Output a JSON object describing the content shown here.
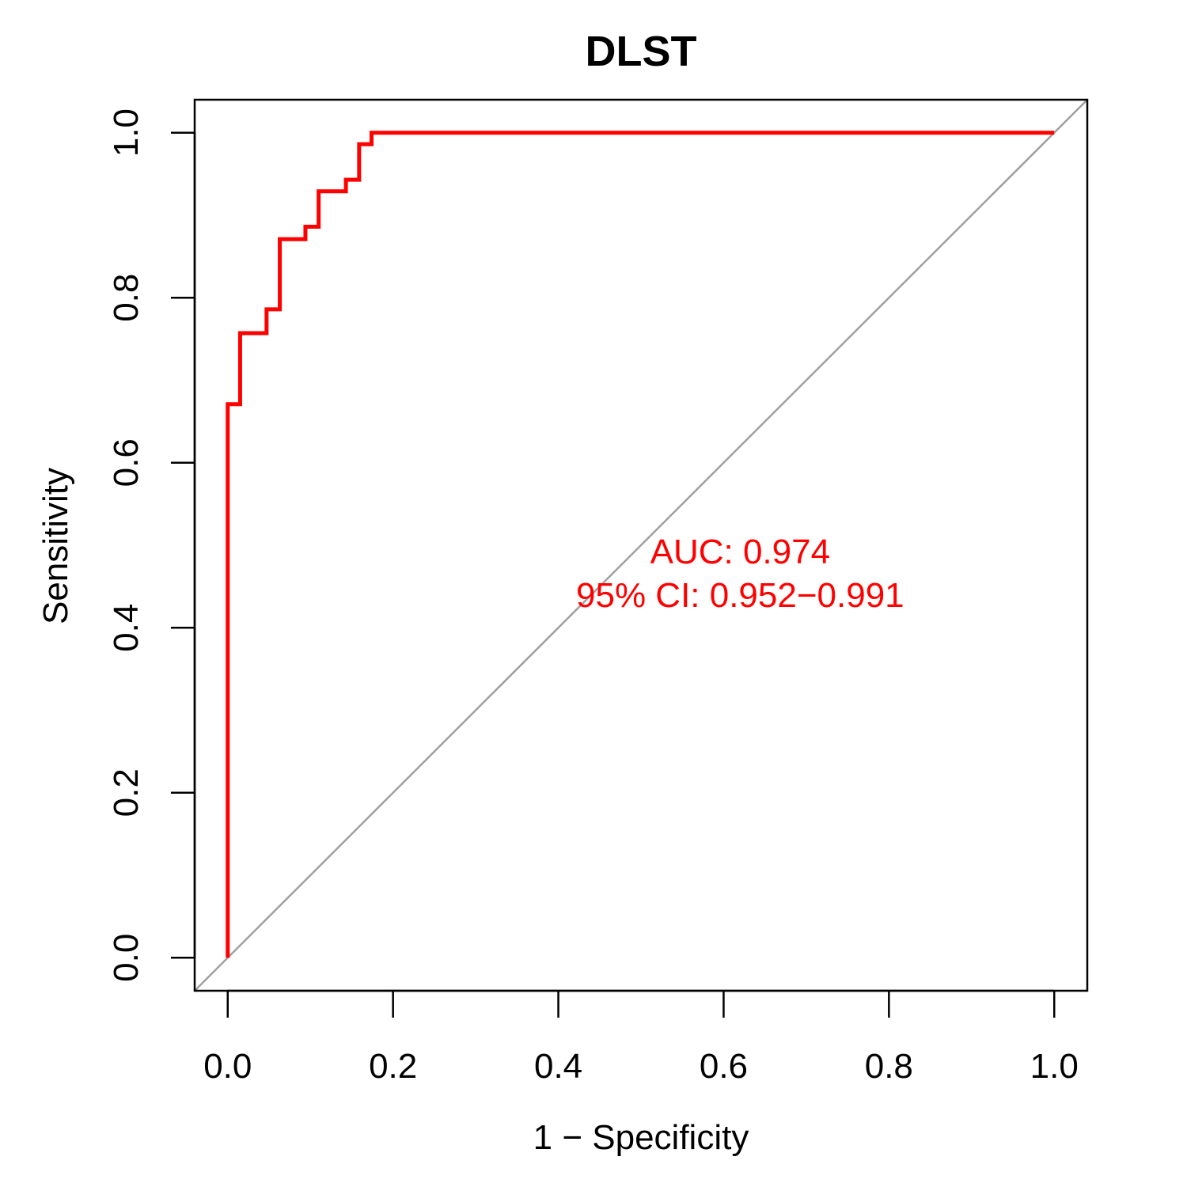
{
  "chart_data": {
    "type": "line",
    "title": "DLST",
    "xlabel": "1 − Specificity",
    "ylabel": "Sensitivity",
    "xlim": [
      -0.04,
      1.04
    ],
    "ylim": [
      -0.04,
      1.04
    ],
    "xticks": [
      0.0,
      0.2,
      0.4,
      0.6,
      0.8,
      1.0
    ],
    "yticks": [
      0.0,
      0.2,
      0.4,
      0.6,
      0.8,
      1.0
    ],
    "xtick_labels": [
      "0.0",
      "0.2",
      "0.4",
      "0.6",
      "0.8",
      "1.0"
    ],
    "ytick_labels": [
      "0.0",
      "0.2",
      "0.4",
      "0.6",
      "0.8",
      "1.0"
    ],
    "grid": false,
    "series": [
      {
        "color": "#ff0000",
        "x": [
          0.0,
          0.0,
          0.015,
          0.015,
          0.047,
          0.047,
          0.063,
          0.063,
          0.094,
          0.094,
          0.11,
          0.11,
          0.143,
          0.143,
          0.159,
          0.159,
          0.174,
          0.174,
          1.0
        ],
        "y": [
          0.0,
          0.671,
          0.671,
          0.757,
          0.757,
          0.786,
          0.786,
          0.871,
          0.871,
          0.886,
          0.886,
          0.929,
          0.929,
          0.943,
          0.943,
          0.986,
          0.986,
          1.0,
          1.0
        ]
      }
    ],
    "reference_line": {
      "color": "#a0a0a0",
      "x": [
        -0.04,
        1.04
      ],
      "y": [
        -0.04,
        1.04
      ]
    },
    "annotations": [
      {
        "text": "AUC: 0.974",
        "x": 0.62,
        "y": 0.478,
        "color": "#ff0000"
      },
      {
        "text": "95% CI: 0.952−0.991",
        "x": 0.62,
        "y": 0.425,
        "color": "#ff0000"
      }
    ]
  }
}
